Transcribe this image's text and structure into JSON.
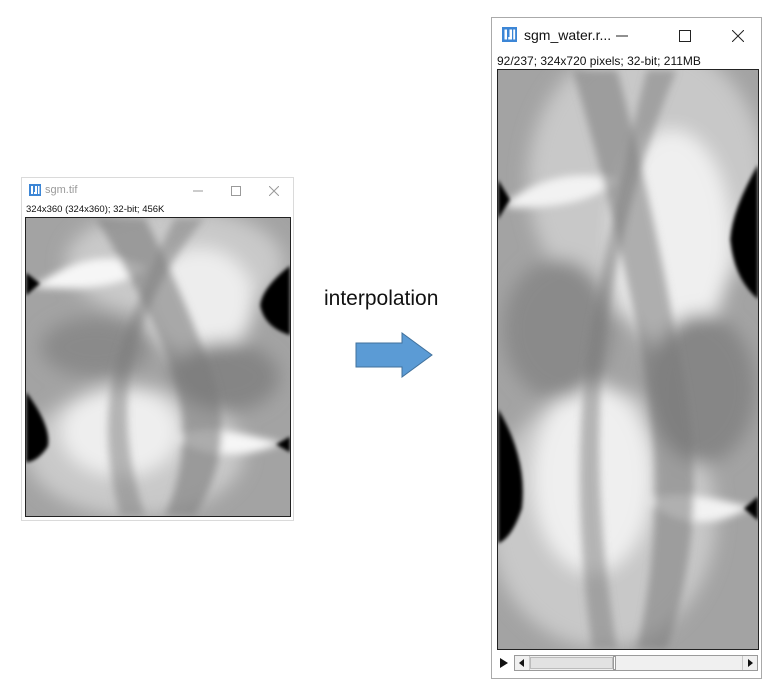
{
  "left_window": {
    "title": "sgm.tif",
    "info": "324x360  (324x360); 32-bit; 456K",
    "icon": "imagej-icon",
    "controls": [
      "minimize-icon",
      "maximize-icon",
      "close-icon"
    ]
  },
  "right_window": {
    "title": "sgm_water.r...",
    "info": "92/237; 324x720 pixels; 32-bit; 211MB",
    "icon": "imagej-icon",
    "controls": [
      "minimize-icon",
      "maximize-icon",
      "close-icon"
    ],
    "slice_position": 0.39
  },
  "caption": "interpolation",
  "colors": {
    "arrow": "#5b9bd5",
    "arrow_stroke": "#41719c",
    "icon": "#3c86d6"
  }
}
